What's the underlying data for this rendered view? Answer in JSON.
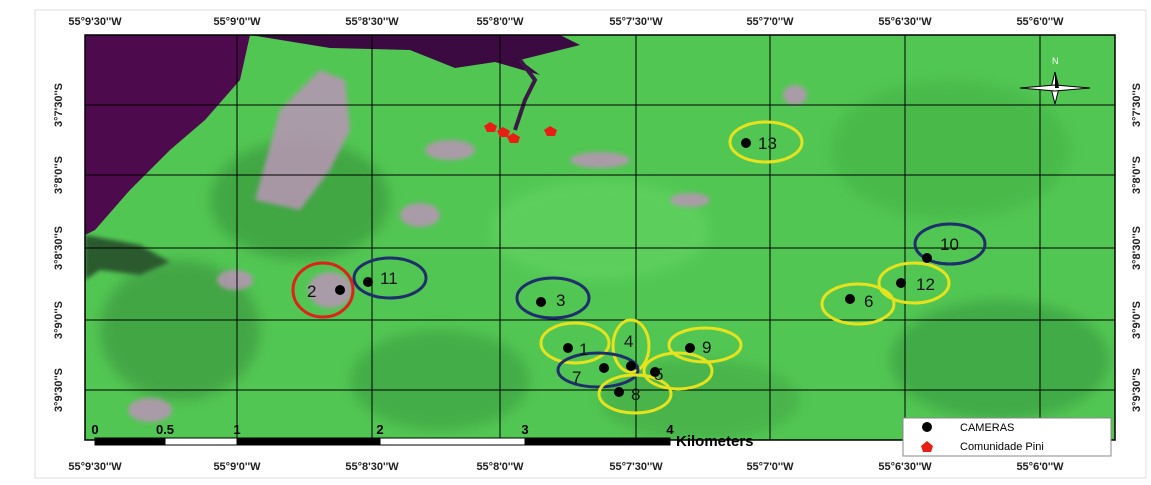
{
  "map": {
    "longitude_labels_top": [
      "55°9'30''W",
      "55°9'0''W",
      "55°8'30''W",
      "55°8'0''W",
      "55°7'30''W",
      "55°7'0''W",
      "55°6'30''W",
      "55°6'0''W"
    ],
    "longitude_labels_bottom": [
      "55°9'30''W",
      "55°9'0''W",
      "55°8'30''W",
      "55°8'0''W",
      "55°7'30''W",
      "55°7'0''W",
      "55°6'30''W",
      "55°6'0''W"
    ],
    "latitude_labels_left": [
      "3°7'30''S",
      "3°8'0''S",
      "3°8'30''S",
      "3°9'0''S",
      "3°9'30''S"
    ],
    "latitude_labels_right": [
      "3°7'30''S",
      "3°8'0''S",
      "3°8'30''S",
      "3°9'0''S",
      "3°9'30''S"
    ],
    "north_label": "N",
    "cameras": [
      {
        "label": "1",
        "ring": "#e6e21e"
      },
      {
        "label": "2",
        "ring": "#e0201a"
      },
      {
        "label": "3",
        "ring": "#1f2f6b"
      },
      {
        "label": "4",
        "ring": "#e6e21e"
      },
      {
        "label": "5",
        "ring": "#e6e21e"
      },
      {
        "label": "6",
        "ring": "#e6e21e"
      },
      {
        "label": "7",
        "ring": "#1f2f6b"
      },
      {
        "label": "8",
        "ring": "#e6e21e"
      },
      {
        "label": "9",
        "ring": "#e6e21e"
      },
      {
        "label": "10",
        "ring": "#1f2f6b"
      },
      {
        "label": "11",
        "ring": "#1f2f6b"
      },
      {
        "label": "12",
        "ring": "#e6e21e"
      },
      {
        "label": "13",
        "ring": "#e6e21e"
      }
    ],
    "scale_bar": {
      "labels": [
        "0",
        "0.5",
        "1",
        "2",
        "3",
        "4"
      ],
      "unit": "Kilometers"
    },
    "legend": [
      {
        "label": "CAMERAS"
      },
      {
        "label": "Comunidade Pini"
      }
    ]
  }
}
